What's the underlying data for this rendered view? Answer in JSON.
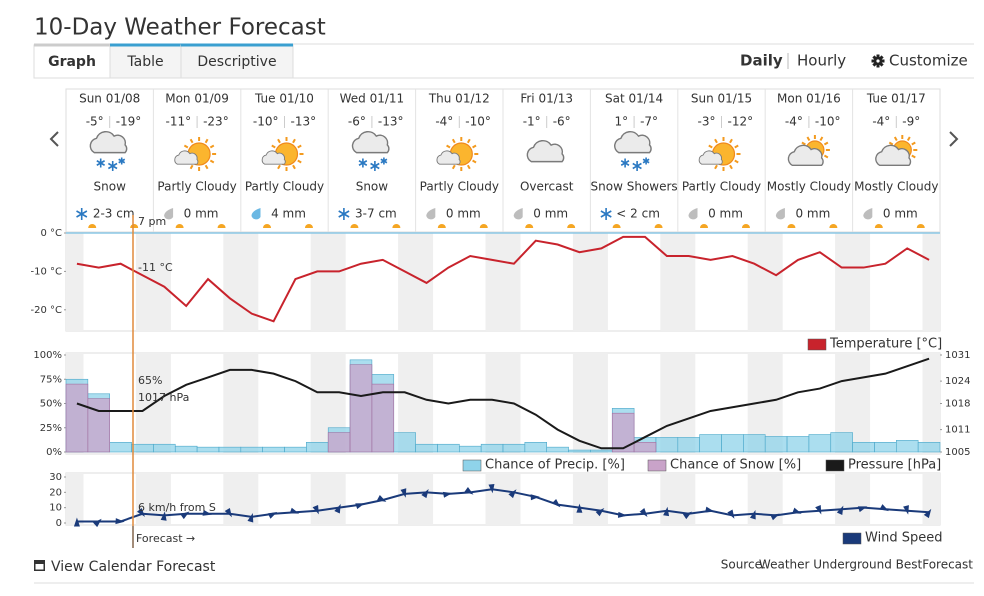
{
  "header": {
    "title": "10-Day Weather Forecast",
    "tabs": [
      "Graph",
      "Table",
      "Descriptive"
    ],
    "views": [
      "Daily",
      "Hourly"
    ],
    "customize": "Customize"
  },
  "days": [
    {
      "date": "Sun 01/08",
      "high": "-5°",
      "low": "-19°",
      "condition": "Snow",
      "precip": "2-3 cm"
    },
    {
      "date": "Mon 01/09",
      "high": "-11°",
      "low": "-23°",
      "condition": "Partly Cloudy",
      "precip": "0 mm"
    },
    {
      "date": "Tue 01/10",
      "high": "-10°",
      "low": "-13°",
      "condition": "Partly Cloudy",
      "precip": "4 mm"
    },
    {
      "date": "Wed 01/11",
      "high": "-6°",
      "low": "-13°",
      "condition": "Snow",
      "precip": "3-7 cm"
    },
    {
      "date": "Thu 01/12",
      "high": "-4°",
      "low": "-10°",
      "condition": "Partly Cloudy",
      "precip": "0 mm"
    },
    {
      "date": "Fri 01/13",
      "high": "-1°",
      "low": "-6°",
      "condition": "Overcast",
      "precip": "0 mm"
    },
    {
      "date": "Sat 01/14",
      "high": "1°",
      "low": "-7°",
      "condition": "Snow Showers",
      "precip": "< 2 cm"
    },
    {
      "date": "Sun 01/15",
      "high": "-3°",
      "low": "-12°",
      "condition": "Partly Cloudy",
      "precip": "0 mm"
    },
    {
      "date": "Mon 01/16",
      "high": "-4°",
      "low": "-10°",
      "condition": "Mostly Cloudy",
      "precip": "0 mm"
    },
    {
      "date": "Tue 01/17",
      "high": "-4°",
      "low": "-9°",
      "condition": "Mostly Cloudy",
      "precip": "0 mm"
    }
  ],
  "markers": {
    "now": "7 pm",
    "forecast": "Forecast →"
  },
  "chart_data": [
    {
      "type": "line",
      "series": [
        {
          "name": "Temperature [°C]",
          "color": "#c8232c",
          "values": [
            -8,
            -9,
            -8,
            -11,
            -14,
            -19,
            -12,
            -17,
            -21,
            -23,
            -12,
            -10,
            -10,
            -8,
            -7,
            -10,
            -13,
            -9,
            -6,
            -7,
            -8,
            -2,
            -3,
            -5,
            -4,
            -1,
            -1,
            -6,
            -6,
            -7,
            -6,
            -8,
            -11,
            -7,
            -5,
            -9,
            -9,
            -8,
            -4,
            -7
          ]
        }
      ],
      "ylim": [
        -25,
        0
      ],
      "yticks": [
        {
          "value": 0,
          "label": "0 °C"
        },
        {
          "value": -10,
          "label": "-10 °C"
        },
        {
          "value": -20,
          "label": "-20 °C"
        }
      ],
      "annotations": [
        "-11 °C"
      ]
    },
    {
      "type": "area",
      "series": [
        {
          "name": "Chance of Precip. [%]",
          "color": "#8fd3ea",
          "values": [
            75,
            60,
            10,
            8,
            8,
            6,
            5,
            5,
            5,
            5,
            5,
            10,
            25,
            95,
            80,
            20,
            8,
            8,
            6,
            8,
            8,
            10,
            5,
            2,
            2,
            45,
            15,
            15,
            15,
            18,
            18,
            18,
            16,
            16,
            18,
            20,
            10,
            10,
            12,
            10
          ]
        },
        {
          "name": "Chance of Snow [%]",
          "color": "#c9a3c9",
          "values": [
            70,
            55,
            0,
            0,
            0,
            0,
            0,
            0,
            0,
            0,
            0,
            0,
            20,
            90,
            70,
            0,
            0,
            0,
            0,
            0,
            0,
            0,
            0,
            0,
            0,
            40,
            10,
            0,
            0,
            0,
            0,
            0,
            0,
            0,
            0,
            0,
            0,
            0,
            0,
            0
          ]
        },
        {
          "name": "Pressure [hPa]",
          "color": "#1a1a1a",
          "axis": "y2",
          "values": [
            1018,
            1016,
            1016,
            1016,
            1020,
            1023,
            1025,
            1027,
            1027,
            1026,
            1024,
            1021,
            1021,
            1020,
            1021,
            1021,
            1019,
            1018,
            1019,
            1019,
            1018,
            1015,
            1011,
            1008,
            1006,
            1006,
            1009,
            1012,
            1014,
            1016,
            1017,
            1018,
            1019,
            1021,
            1022,
            1024,
            1025,
            1026,
            1028,
            1030
          ]
        }
      ],
      "ylim": [
        0,
        100
      ],
      "yticks": [
        {
          "value": 100,
          "label": "100%"
        },
        {
          "value": 75,
          "label": "75%"
        },
        {
          "value": 50,
          "label": "50%"
        },
        {
          "value": 25,
          "label": "25%"
        },
        {
          "value": 0,
          "label": "0%"
        }
      ],
      "y2lim": [
        1005,
        1031
      ],
      "y2ticks": [
        1031,
        1024,
        1018,
        1011,
        1005
      ],
      "annotations": [
        "65%",
        "1017 hPa"
      ]
    },
    {
      "type": "line",
      "series": [
        {
          "name": "Wind Speed",
          "color": "#1a3a7a",
          "values": [
            1,
            1,
            1,
            6,
            5,
            6,
            6,
            6,
            4,
            6,
            7,
            8,
            10,
            12,
            15,
            19,
            20,
            19,
            20,
            22,
            20,
            17,
            12,
            10,
            8,
            5,
            6,
            8,
            6,
            8,
            5,
            6,
            5,
            7,
            8,
            9,
            10,
            9,
            8,
            7
          ]
        }
      ],
      "ylim": [
        0,
        30
      ],
      "yticks": [
        0,
        10,
        20,
        30
      ],
      "annotations": [
        "6 km/h from S"
      ]
    }
  ],
  "footer": {
    "calendar_link": "View Calendar Forecast",
    "source_label": "Source:",
    "source_link": "Weather Underground BestForecast"
  }
}
